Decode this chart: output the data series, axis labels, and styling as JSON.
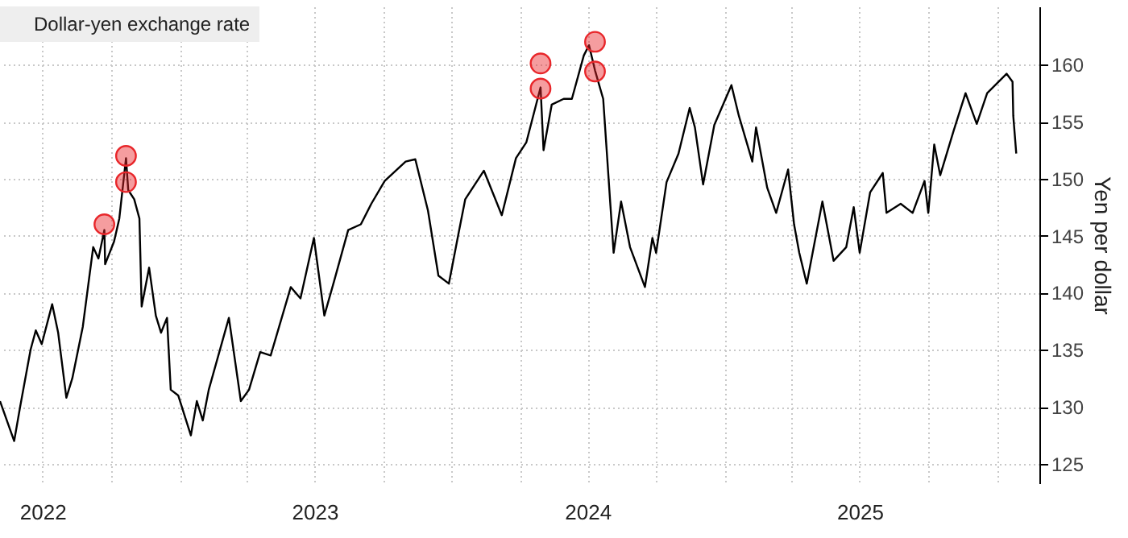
{
  "chart_data": {
    "type": "line",
    "ylabel": "Yen per dollar",
    "legend": "top left",
    "grid": true,
    "xlim": [
      "2022-05-05",
      "2026-02-27"
    ],
    "ylim": [
      123.3,
      165.1
    ],
    "yticks": [
      125,
      130,
      135,
      140,
      145,
      150,
      155,
      160
    ],
    "xticks": [
      {
        "value": "2022-07-01",
        "label": "2022"
      },
      {
        "value": "2022-10-01",
        "label": null
      },
      {
        "value": "2023-01-01",
        "label": null
      },
      {
        "value": "2023-04-01",
        "label": null
      },
      {
        "value": "2023-07-01",
        "label": "2023"
      },
      {
        "value": "2023-10-01",
        "label": null
      },
      {
        "value": "2024-01-01",
        "label": null
      },
      {
        "value": "2024-04-01",
        "label": null
      },
      {
        "value": "2024-07-01",
        "label": "2024"
      },
      {
        "value": "2024-10-01",
        "label": null
      },
      {
        "value": "2025-01-01",
        "label": null
      },
      {
        "value": "2025-04-01",
        "label": null
      },
      {
        "value": "2025-07-01",
        "label": "2025"
      },
      {
        "value": "2025-10-01",
        "label": null
      },
      {
        "value": "2026-01-01",
        "label": null
      }
    ],
    "series": [
      {
        "name": "Dollar-yen exchange rate",
        "color": "#000000",
        "x": [
          "2022-05-05",
          "2022-05-24",
          "2022-06-01",
          "2022-06-15",
          "2022-06-22",
          "2022-06-30",
          "2022-07-14",
          "2022-07-22",
          "2022-08-02",
          "2022-08-10",
          "2022-08-24",
          "2022-09-07",
          "2022-09-14",
          "2022-09-22",
          "2022-09-23",
          "2022-10-05",
          "2022-10-12",
          "2022-10-21",
          "2022-10-24",
          "2022-11-01",
          "2022-11-08",
          "2022-11-11",
          "2022-11-21",
          "2022-11-30",
          "2022-12-07",
          "2022-12-15",
          "2022-12-20",
          "2022-12-30",
          "2023-01-16",
          "2023-01-24",
          "2023-02-01",
          "2023-02-09",
          "2023-03-08",
          "2023-03-24",
          "2023-04-04",
          "2023-04-19",
          "2023-05-03",
          "2023-05-30",
          "2023-06-12",
          "2023-06-30",
          "2023-07-14",
          "2023-07-27",
          "2023-08-15",
          "2023-09-01",
          "2023-09-15",
          "2023-10-03",
          "2023-10-31",
          "2023-11-13",
          "2023-11-30",
          "2023-12-14",
          "2023-12-28",
          "2024-01-10",
          "2024-01-19",
          "2024-02-13",
          "2024-03-08",
          "2024-03-27",
          "2024-04-10",
          "2024-04-29",
          "2024-05-03",
          "2024-05-14",
          "2024-05-30",
          "2024-06-10",
          "2024-06-26",
          "2024-07-03",
          "2024-07-11",
          "2024-07-22",
          "2024-08-05",
          "2024-08-15",
          "2024-08-27",
          "2024-09-16",
          "2024-09-26",
          "2024-10-01",
          "2024-10-15",
          "2024-10-31",
          "2024-11-15",
          "2024-11-22",
          "2024-12-03",
          "2024-12-18",
          "2025-01-10",
          "2025-01-20",
          "2025-02-07",
          "2025-02-12",
          "2025-02-27",
          "2025-03-11",
          "2025-03-27",
          "2025-04-04",
          "2025-04-11",
          "2025-04-21",
          "2025-05-12",
          "2025-05-27",
          "2025-06-13",
          "2025-06-23",
          "2025-07-01",
          "2025-07-15",
          "2025-08-01",
          "2025-08-06",
          "2025-08-25",
          "2025-09-10",
          "2025-09-26",
          "2025-10-01",
          "2025-10-09",
          "2025-10-17",
          "2025-11-04",
          "2025-11-20",
          "2025-12-05",
          "2025-12-19",
          "2026-01-14",
          "2026-01-22",
          "2026-01-23",
          "2026-01-27"
        ],
        "values": [
          130.5,
          127.0,
          130,
          135,
          136.7,
          135.5,
          139.0,
          136.5,
          130.8,
          132.5,
          137,
          144,
          143,
          145.5,
          142.5,
          144.5,
          146.5,
          151.8,
          149.0,
          148.2,
          146.5,
          138.8,
          142.2,
          138,
          136.5,
          137.8,
          131.5,
          131,
          127.5,
          130.5,
          128.8,
          131.5,
          137.8,
          130.5,
          131.5,
          134.8,
          134.5,
          140.5,
          139.5,
          144.8,
          138,
          141,
          145.5,
          146,
          147.8,
          149.8,
          151.5,
          151.7,
          147.2,
          141.5,
          140.8,
          145.2,
          148.2,
          150.7,
          146.8,
          151.8,
          153.2,
          158,
          152.5,
          156.5,
          157,
          157,
          160.8,
          161.7,
          159.5,
          157,
          143.5,
          148,
          144,
          140.5,
          144.8,
          143.5,
          149.7,
          152.2,
          156.2,
          154.5,
          149.5,
          154.7,
          158.2,
          155.5,
          151.5,
          154.5,
          149.2,
          147,
          150.8,
          146,
          143.5,
          140.8,
          148,
          142.8,
          144,
          147.5,
          143.5,
          148.8,
          150.5,
          147,
          147.8,
          147,
          149.8,
          147,
          153,
          150.3,
          154.2,
          157.5,
          154.8,
          157.5,
          159.2,
          158.5,
          155.5,
          152.2
        ]
      },
      {
        "type": "scatter",
        "marker": "circle",
        "color": "#e8262a",
        "x": [
          "2022-09-22",
          "2022-10-21",
          "2022-10-21",
          "2024-04-29",
          "2024-04-29",
          "2024-07-11",
          "2024-07-11"
        ],
        "values": [
          146.0,
          152.0,
          149.7,
          160.1,
          157.9,
          162.0,
          159.4
        ]
      }
    ]
  }
}
